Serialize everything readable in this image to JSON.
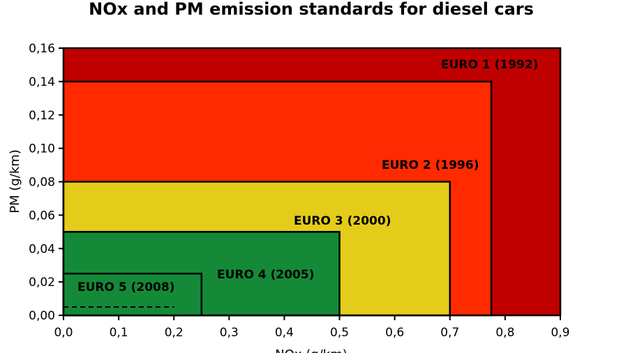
{
  "chart_data": {
    "type": "area",
    "title": "NOx and PM emission standards for diesel cars",
    "xlabel": "NOx (g/km)",
    "ylabel": "PM (g/km)",
    "xlim": [
      0,
      0.9
    ],
    "ylim": [
      0,
      0.16
    ],
    "x_ticks": [
      "0,0",
      "0,1",
      "0,2",
      "0,3",
      "0,4",
      "0,5",
      "0,6",
      "0,7",
      "0,8",
      "0,9"
    ],
    "y_ticks": [
      "0,00",
      "0,02",
      "0,04",
      "0,06",
      "0,08",
      "0,10",
      "0,12",
      "0,14",
      "0,16"
    ],
    "grid": false,
    "series": [
      {
        "name": "EURO 1 (1992)",
        "nox": 0.9,
        "pm": 0.16,
        "color": "#c00000"
      },
      {
        "name": "EURO 2 (1996)",
        "nox": 0.775,
        "pm": 0.14,
        "color": "#ff2a00"
      },
      {
        "name": "EURO 3 (2000)",
        "nox": 0.7,
        "pm": 0.08,
        "color": "#e3cc1a"
      },
      {
        "name": "EURO 4 (2005)",
        "nox": 0.5,
        "pm": 0.05,
        "color": "#148a38"
      },
      {
        "name": "EURO 5 (2008)",
        "nox": 0.25,
        "pm": 0.025,
        "color": "#148a38"
      }
    ],
    "dashed_limit": {
      "nox": 0.2,
      "pm": 0.005
    }
  }
}
